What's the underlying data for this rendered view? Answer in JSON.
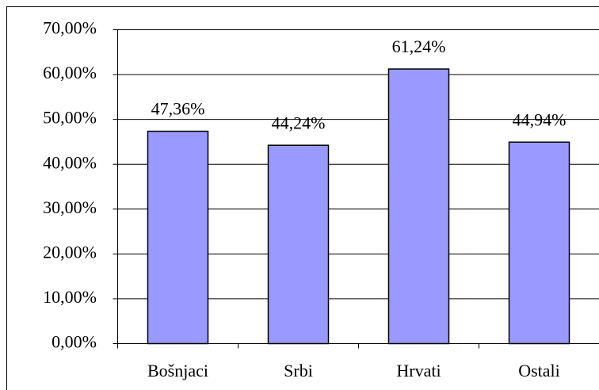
{
  "chart_data": {
    "type": "bar",
    "categories": [
      "Bošnjaci",
      "Srbi",
      "Hrvati",
      "Ostali"
    ],
    "values": [
      47.36,
      44.24,
      61.24,
      44.94
    ],
    "value_labels": [
      "47,36%",
      "44,24%",
      "61,24%",
      "44,94%"
    ],
    "color": "#9999ff",
    "ylim": [
      0,
      70
    ],
    "yticks": [
      {
        "value": 0,
        "label": "0,00%"
      },
      {
        "value": 10,
        "label": "10,00%"
      },
      {
        "value": 20,
        "label": "20,00%"
      },
      {
        "value": 30,
        "label": "30,00%"
      },
      {
        "value": 40,
        "label": "40,00%"
      },
      {
        "value": 50,
        "label": "50,00%"
      },
      {
        "value": 60,
        "label": "60,00%"
      },
      {
        "value": 70,
        "label": "70,00%"
      }
    ],
    "grid": true
  }
}
